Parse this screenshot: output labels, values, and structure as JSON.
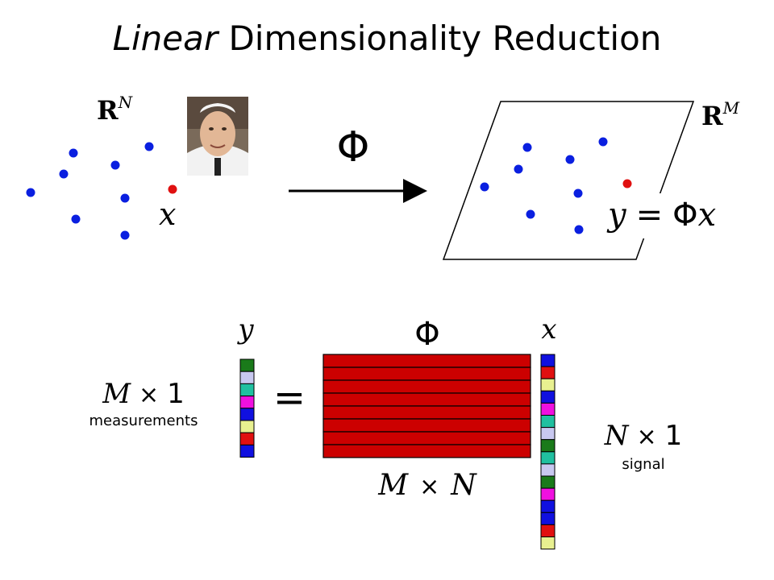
{
  "slide": {
    "title_italic": "Linear",
    "title_rest": " Dimensionality Reduction"
  },
  "top": {
    "space_high_letter": "R",
    "space_high_sup": "N",
    "signal_label": "x",
    "phi_label": "Φ",
    "space_low_letter": "R",
    "space_low_sup": "M",
    "eq_y": "y",
    "eq_equals": "=",
    "eq_phi": "Φ",
    "eq_x": "x",
    "point_color": "#0a1fe0",
    "highlight_color": "#e01010"
  },
  "bottom": {
    "y_label": "y",
    "phi_label": "Φ",
    "x_label": "x",
    "equals": "=",
    "y_dim_m": "M",
    "y_dim_times": "×",
    "y_dim_one": "1",
    "y_caption": "measurements",
    "matrix_m": "M",
    "matrix_times": "×",
    "matrix_n": "N",
    "x_dim_n": "N",
    "x_dim_times": "×",
    "x_dim_one": "1",
    "x_caption": "signal",
    "matrix_color": "#cc0000",
    "y_vector_colors": [
      "#1a7a1a",
      "#c8c8f0",
      "#20c0a0",
      "#f010e0",
      "#1010e0",
      "#e8f090",
      "#e01010",
      "#1010e0"
    ],
    "x_vector_colors": [
      "#1010e0",
      "#e01010",
      "#e8f090",
      "#1010e0",
      "#f010e0",
      "#20c0a0",
      "#c8c8f0",
      "#1a7a1a",
      "#20c0a0",
      "#c8c8f0",
      "#1a7a1a",
      "#f010e0",
      "#1010e0",
      "#1010e0",
      "#e01010",
      "#e8f090"
    ]
  }
}
